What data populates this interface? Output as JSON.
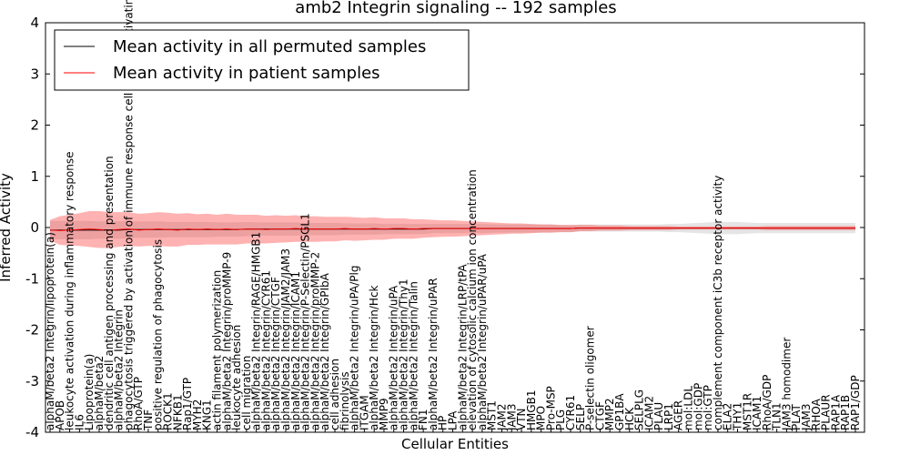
{
  "chart_data": {
    "type": "line",
    "title": "amb2 Integrin signaling -- 192 samples",
    "xlabel": "Cellular Entities",
    "ylabel": "Inferred Activity",
    "ylim": [
      -4,
      4
    ],
    "yticks": [
      -4,
      -3,
      -2,
      -1,
      0,
      1,
      2,
      3,
      4
    ],
    "legend_position": "top-left",
    "categories": [
      "alphaM/beta2 Integrin/lipoprotein(a)",
      "APOB",
      "leukocyte activation during inflammatory response",
      "IL6",
      "Lipoprotein(a)",
      "alphaM/beta2",
      "dendritic cell antigen processing and presentation",
      "alphaM/beta2 Integrin",
      "phagocytosis triggered by activation of immune response cell surface activating receptor",
      "RhoA/GTP",
      "TNF",
      "positive regulation of phagocytosis",
      "ROCK1",
      "NFKB1",
      "Rap1/GTP",
      "MYH2",
      "KNG1",
      "actin filament polymerization",
      "alphaM/beta2 Integrin/proMMP-9",
      "leukocyte adhesion",
      "cell migration",
      "alphaM/beta2 Integrin/RAGE/HMGB1",
      "alphaM/beta2 Integrin/CYR61",
      "alphaM/beta2 Integrin/CTGF",
      "alphaM/beta2 Integrin/JAM2/JAM3",
      "alphaM/beta2 Integrin/ICAM1",
      "alphaM/beta2 Integrin/P-Selectin/PSGL1",
      "alphaM/beta2 Integrin/proMMP-2",
      "alphaM/beta2 Integrin/GPIbA",
      "cell adhesion",
      "fibrinolysis",
      "alphaM/beta2 Integrin/uPA/Plg",
      "ITGAM",
      "alphaM/beta2 Integrin/Hck",
      "MMP9",
      "alphaM/beta2 Integrin/uPA",
      "alphaM/beta2 Integrin/Thy1",
      "alphaM/beta2 Integrin/Talin",
      "FN1",
      "alphaM/beta2 Integrin/uPAR",
      "HP",
      "LPA",
      "alphaM/beta2 Integrin/LRP/tPA",
      "elevation of cytosolic calcium ion concentration",
      "alphaM/beta2 Integrin/uPAR/uPA",
      "MST1",
      "JAM2",
      "JAM3",
      "VTN",
      "HMGB1",
      "MPO",
      "Pro-MSP",
      "PLG",
      "CYR61",
      "SELP",
      "P-selectin oligomer",
      "CTGF",
      "MMP2",
      "GP1BA",
      "HCK",
      "SELPLG",
      "ICAM2",
      "PLAU",
      "LRP1",
      "AGER",
      "mol:LDL",
      "mol:GDP",
      "mol:GTP",
      "complement component iC3b receptor activity",
      "ELA2",
      "THY1",
      "MST1R",
      "ICAM1",
      "RhoA/GDP",
      "TLN1",
      "JAM3 homodimer",
      "PLAT",
      "JAM3",
      "RHOA",
      "PLAUR",
      "RAP1A",
      "RAP1B",
      "RAP1/GDP"
    ],
    "series": [
      {
        "name": "Mean activity in all permuted samples",
        "color": "#000000",
        "values": [
          -0.05,
          -0.05,
          -0.05,
          -0.05,
          -0.05,
          -0.05,
          -0.05,
          -0.05,
          -0.04,
          -0.04,
          -0.04,
          -0.04,
          -0.04,
          -0.04,
          -0.04,
          -0.04,
          -0.04,
          -0.04,
          -0.04,
          -0.04,
          -0.03,
          -0.03,
          -0.03,
          -0.03,
          -0.03,
          -0.03,
          -0.03,
          -0.03,
          -0.03,
          -0.03,
          -0.03,
          -0.03,
          -0.03,
          -0.03,
          -0.03,
          -0.03,
          -0.03,
          -0.03,
          -0.03,
          -0.02,
          -0.02,
          -0.02,
          -0.02,
          -0.02,
          -0.02,
          -0.02,
          -0.02,
          -0.02,
          -0.02,
          -0.02,
          -0.02,
          -0.02,
          -0.02,
          -0.02,
          -0.01,
          -0.01,
          -0.01,
          -0.01,
          -0.01,
          -0.01,
          -0.01,
          -0.01,
          -0.01,
          -0.01,
          -0.01,
          -0.01,
          -0.01,
          -0.01,
          -0.01,
          -0.01,
          -0.01,
          -0.01,
          -0.01,
          -0.01,
          -0.01,
          -0.01,
          -0.01,
          -0.01,
          -0.01,
          -0.01,
          -0.01,
          -0.01,
          -0.01
        ],
        "band": [
          0.18,
          0.18,
          0.18,
          0.18,
          0.18,
          0.17,
          0.17,
          0.17,
          0.17,
          0.16,
          0.16,
          0.16,
          0.15,
          0.15,
          0.15,
          0.15,
          0.15,
          0.14,
          0.14,
          0.14,
          0.14,
          0.13,
          0.13,
          0.13,
          0.13,
          0.13,
          0.12,
          0.12,
          0.12,
          0.12,
          0.11,
          0.11,
          0.11,
          0.11,
          0.1,
          0.1,
          0.1,
          0.1,
          0.1,
          0.09,
          0.09,
          0.09,
          0.09,
          0.09,
          0.09,
          0.08,
          0.08,
          0.08,
          0.08,
          0.08,
          0.08,
          0.08,
          0.07,
          0.07,
          0.07,
          0.07,
          0.07,
          0.07,
          0.07,
          0.07,
          0.07,
          0.07,
          0.07,
          0.08,
          0.08,
          0.09,
          0.1,
          0.11,
          0.12,
          0.12,
          0.12,
          0.11,
          0.1,
          0.1,
          0.1,
          0.1,
          0.1,
          0.1,
          0.1,
          0.1,
          0.1,
          0.1,
          0.1
        ]
      },
      {
        "name": "Mean activity in patient samples",
        "color": "#ff0000",
        "values": [
          -0.05,
          -0.06,
          -0.05,
          -0.04,
          -0.03,
          -0.04,
          -0.05,
          -0.04,
          -0.03,
          -0.05,
          -0.04,
          -0.03,
          -0.04,
          -0.05,
          -0.03,
          -0.04,
          -0.03,
          -0.04,
          -0.03,
          -0.04,
          -0.03,
          -0.03,
          -0.04,
          -0.03,
          -0.03,
          -0.02,
          -0.03,
          -0.03,
          -0.03,
          -0.03,
          -0.02,
          -0.03,
          -0.03,
          -0.02,
          -0.03,
          -0.02,
          -0.02,
          -0.03,
          -0.02,
          -0.02,
          -0.02,
          -0.02,
          -0.02,
          -0.02,
          -0.02,
          -0.02,
          -0.02,
          -0.02,
          -0.02,
          -0.02,
          -0.02,
          -0.02,
          -0.02,
          -0.02,
          -0.01,
          -0.01,
          -0.01,
          -0.01,
          -0.01,
          -0.01,
          -0.01,
          -0.01,
          -0.01,
          -0.01,
          -0.01,
          -0.01,
          -0.01,
          -0.01,
          -0.01,
          -0.01,
          -0.01,
          -0.01,
          -0.01,
          -0.01,
          -0.01,
          -0.01,
          -0.01,
          -0.01,
          -0.01,
          -0.01,
          -0.01,
          -0.01,
          -0.01
        ],
        "band": [
          0.2,
          0.28,
          0.3,
          0.32,
          0.35,
          0.36,
          0.35,
          0.34,
          0.33,
          0.32,
          0.32,
          0.33,
          0.33,
          0.32,
          0.31,
          0.3,
          0.3,
          0.29,
          0.3,
          0.29,
          0.28,
          0.28,
          0.27,
          0.27,
          0.26,
          0.26,
          0.25,
          0.25,
          0.24,
          0.24,
          0.23,
          0.23,
          0.22,
          0.22,
          0.21,
          0.2,
          0.2,
          0.19,
          0.18,
          0.17,
          0.16,
          0.16,
          0.15,
          0.14,
          0.13,
          0.12,
          0.11,
          0.1,
          0.1,
          0.09,
          0.08,
          0.08,
          0.07,
          0.07,
          0.06,
          0.06,
          0.05,
          0.05,
          0.05,
          0.04,
          0.04,
          0.04,
          0.04,
          0.04,
          0.03,
          0.03,
          0.03,
          0.03,
          0.03,
          0.03,
          0.03,
          0.03,
          0.03,
          0.04,
          0.04,
          0.04,
          0.04,
          0.04,
          0.04,
          0.04,
          0.04,
          0.04,
          0.04
        ]
      }
    ]
  }
}
